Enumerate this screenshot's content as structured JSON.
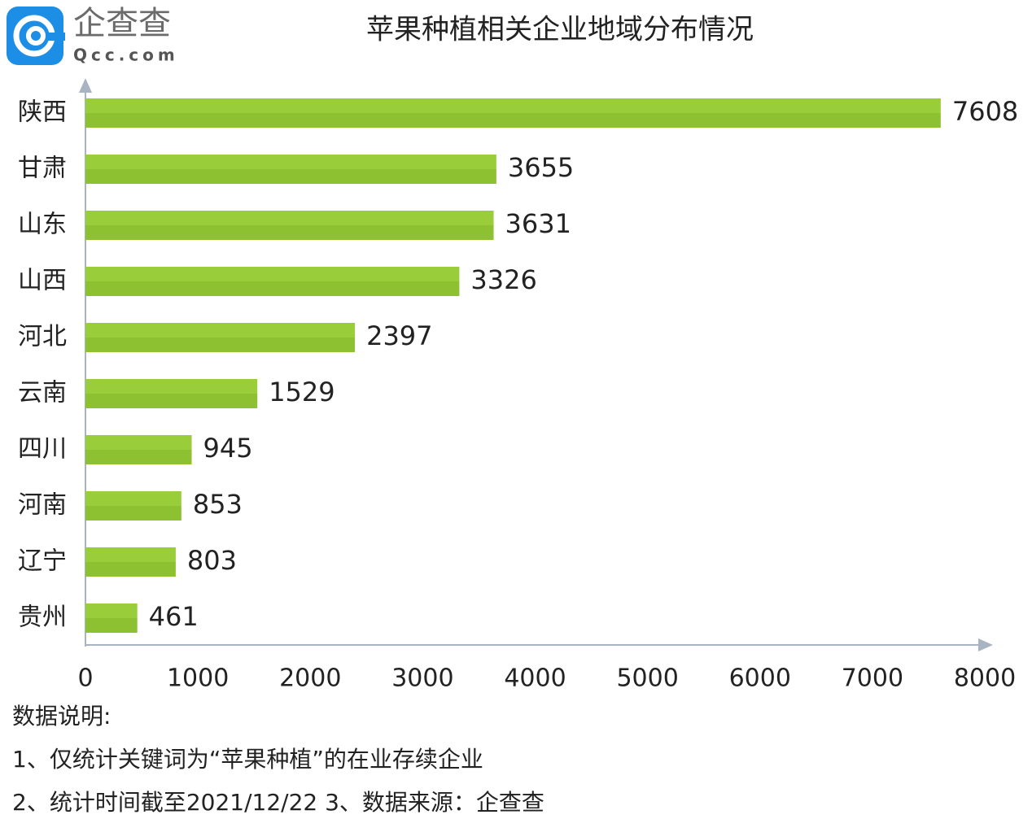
{
  "logo": {
    "name": "企查查",
    "domain": "Qcc.com"
  },
  "chart_data": {
    "type": "bar",
    "orientation": "horizontal",
    "title": "苹果种植相关企业地域分布情况",
    "categories": [
      "陕西",
      "甘肃",
      "山东",
      "山西",
      "河北",
      "云南",
      "四川",
      "河南",
      "辽宁",
      "贵州"
    ],
    "values": [
      7608,
      3655,
      3631,
      3326,
      2397,
      1529,
      945,
      853,
      803,
      461
    ],
    "color": "#9acd3a",
    "xlim": [
      0,
      8000
    ],
    "xticks": [
      0,
      1000,
      2000,
      3000,
      4000,
      5000,
      6000,
      7000,
      8000
    ],
    "grid": false
  },
  "notes": [
    "数据说明:",
    "1、仅统计关键词为“苹果种植”的在业存续企业",
    "2、统计时间截至2021/12/22 3、数据来源：企查查"
  ]
}
